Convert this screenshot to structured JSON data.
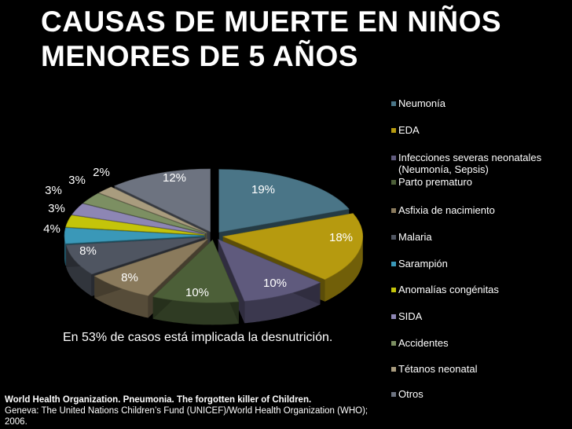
{
  "title_line1": "CAUSAS DE MUERTE EN NIÑOS",
  "title_line2": "MENORES DE 5 AÑOS",
  "note": "En 53% de casos está implicada la desnutrición.",
  "source_line1": "World Health Organization. Pneumonia. The forgotten killer of Children.",
  "source_line2": "Geneva: The United Nations Children’s Fund (UNICEF)/World Health Organization (WHO); 2006.",
  "chart_data": {
    "type": "pie",
    "title": "CAUSAS DE MUERTE EN NIÑOS MENORES DE 5 AÑOS",
    "legend_position": "right",
    "categories": [
      "Neumonía",
      "EDA",
      "Infecciones severas neonatales (Neumonía, Sepsis)",
      "Parto prematuro",
      "Asfixia de nacimiento",
      "Malaria",
      "Sarampión",
      "Anomalías congénitas",
      "SIDA",
      "Accidentes",
      "Tétanos neonatal",
      "Otros"
    ],
    "values": [
      19,
      18,
      10,
      10,
      8,
      8,
      4,
      3,
      3,
      3,
      2,
      12
    ],
    "value_labels": [
      "19%",
      "18%",
      "10%",
      "10%",
      "8%",
      "8%",
      "4%",
      "3%",
      "3%",
      "3%",
      "2%",
      "12%"
    ],
    "colors": [
      "#4a7587",
      "#b69a0f",
      "#5f5a7d",
      "#4c5f38",
      "#8a7a5c",
      "#4f5561",
      "#3a98b8",
      "#c4c40a",
      "#8d86b4",
      "#7c8f62",
      "#a99c7e",
      "#6d7380"
    ]
  }
}
